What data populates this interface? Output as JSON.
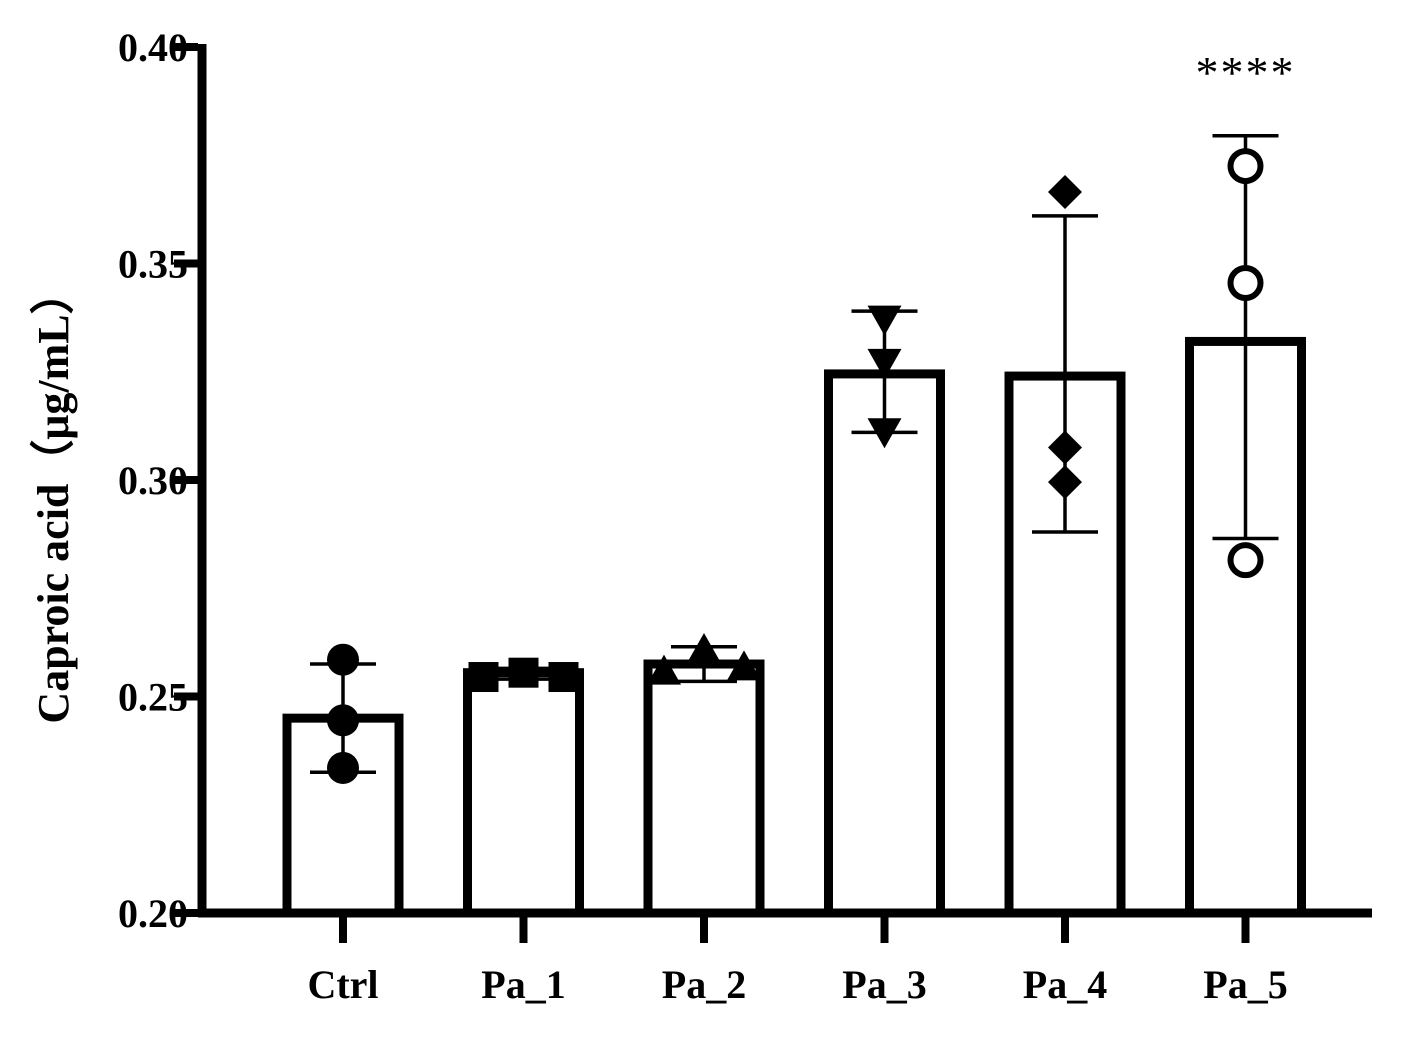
{
  "chart_data": {
    "type": "bar",
    "title": "",
    "xlabel": "",
    "ylabel": "Caproic acid（μg/mL）",
    "ylim": [
      0.2,
      0.4
    ],
    "yticks": [
      "0.20",
      "0.25",
      "0.30",
      "0.35",
      "0.40"
    ],
    "ytick_values": [
      0.2,
      0.25,
      0.3,
      0.35,
      0.4
    ],
    "categories": [
      "Ctrl",
      "Pa_1",
      "Pa_2",
      "Pa_3",
      "Pa_4",
      "Pa_5"
    ],
    "values": [
      0.245,
      0.2555,
      0.2575,
      0.3245,
      0.324,
      0.332
    ],
    "error_bars": [
      {
        "low": 0.2325,
        "high": 0.2575
      },
      {
        "low": 0.254,
        "high": 0.2565
      },
      {
        "low": 0.2535,
        "high": 0.2615
      },
      {
        "low": 0.311,
        "high": 0.339
      },
      {
        "low": 0.288,
        "high": 0.361
      },
      {
        "low": 0.2865,
        "high": 0.3795
      }
    ],
    "points": [
      [
        0.2585,
        0.2445,
        0.2335
      ],
      [
        0.2545,
        0.2555,
        0.2545
      ],
      [
        0.2555,
        0.2605,
        0.2565
      ],
      [
        0.3375,
        0.3275,
        0.3115
      ],
      [
        0.3665,
        0.3075,
        0.2995
      ],
      [
        0.3725,
        0.3455,
        0.2815
      ]
    ],
    "markers": [
      "circle",
      "square",
      "triangle-up",
      "triangle-down",
      "diamond",
      "circle-open"
    ],
    "annotations": [
      {
        "category": "Pa_5",
        "text": "****"
      }
    ],
    "grid": false,
    "legend": "none",
    "colors": {
      "bar_fill": "#ffffff",
      "stroke": "#000000"
    }
  }
}
